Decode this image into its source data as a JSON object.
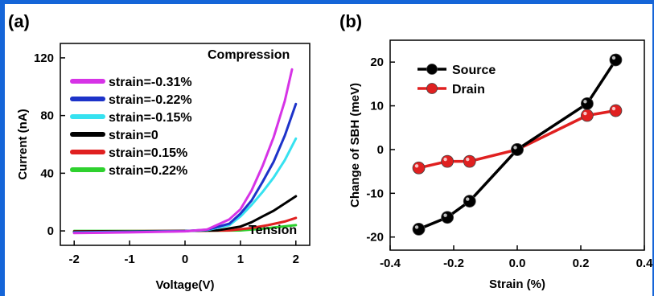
{
  "colors": {
    "frame": "#1565d8"
  },
  "chart_data": [
    {
      "panel_label": "(a)",
      "type": "line",
      "xlabel": "Voltage(V)",
      "ylabel": "Current (nA)",
      "xlim": [
        -2.25,
        2.25
      ],
      "ylim": [
        -10,
        130
      ],
      "xticks": [
        -2,
        -1,
        0,
        1,
        2
      ],
      "yticks": [
        0,
        40,
        80,
        120
      ],
      "annotations": {
        "top": "Compression",
        "bottom": "Tension"
      },
      "legend_position": "top-left",
      "series": [
        {
          "name": "strain=-0.31%",
          "color": "#d633e6",
          "points": [
            [
              -2,
              -1.5
            ],
            [
              -1,
              -1
            ],
            [
              0,
              -0.3
            ],
            [
              0.4,
              1
            ],
            [
              0.8,
              8
            ],
            [
              1.0,
              15
            ],
            [
              1.2,
              28
            ],
            [
              1.4,
              45
            ],
            [
              1.6,
              65
            ],
            [
              1.8,
              90
            ],
            [
              1.93,
              112
            ]
          ]
        },
        {
          "name": "strain=-0.22%",
          "color": "#1d33c9",
          "points": [
            [
              -2,
              -1.2
            ],
            [
              -1,
              -0.8
            ],
            [
              0,
              -0.2
            ],
            [
              0.4,
              0.8
            ],
            [
              0.8,
              5
            ],
            [
              1.0,
              12
            ],
            [
              1.2,
              21
            ],
            [
              1.4,
              34
            ],
            [
              1.6,
              48
            ],
            [
              1.8,
              66
            ],
            [
              2.0,
              88
            ]
          ]
        },
        {
          "name": "strain=-0.15%",
          "color": "#36e2f0",
          "points": [
            [
              -2,
              -1
            ],
            [
              -1,
              -0.6
            ],
            [
              0,
              -0.2
            ],
            [
              0.4,
              0.6
            ],
            [
              0.8,
              4
            ],
            [
              1.0,
              10
            ],
            [
              1.2,
              18
            ],
            [
              1.4,
              27
            ],
            [
              1.6,
              37
            ],
            [
              1.8,
              49
            ],
            [
              2.0,
              64
            ]
          ]
        },
        {
          "name": "strain=0",
          "color": "#000000",
          "points": [
            [
              -2,
              -0.5
            ],
            [
              -1,
              -0.3
            ],
            [
              0,
              0
            ],
            [
              0.6,
              0.5
            ],
            [
              1.0,
              3
            ],
            [
              1.2,
              6
            ],
            [
              1.4,
              10
            ],
            [
              1.6,
              14
            ],
            [
              1.8,
              19
            ],
            [
              2.0,
              24
            ]
          ]
        },
        {
          "name": "strain=0.15%",
          "color": "#e02020",
          "points": [
            [
              -2,
              -0.3
            ],
            [
              -1,
              -0.2
            ],
            [
              0,
              0
            ],
            [
              0.8,
              0.3
            ],
            [
              1.2,
              2
            ],
            [
              1.5,
              4
            ],
            [
              1.8,
              6.5
            ],
            [
              2.0,
              9
            ]
          ]
        },
        {
          "name": "strain=0.22%",
          "color": "#2ed12e",
          "points": [
            [
              -2,
              0
            ],
            [
              -1,
              0
            ],
            [
              0,
              0
            ],
            [
              1.0,
              0.3
            ],
            [
              1.4,
              1.5
            ],
            [
              1.7,
              2.8
            ],
            [
              2.0,
              4
            ]
          ]
        }
      ]
    },
    {
      "panel_label": "(b)",
      "type": "line",
      "xlabel": "Strain (%)",
      "ylabel": "Change of SBH (meV)",
      "xlim": [
        -0.4,
        0.4
      ],
      "ylim": [
        -23,
        25
      ],
      "xticks": [
        -0.4,
        -0.2,
        0.0,
        0.2,
        0.4
      ],
      "xtick_labels": [
        "-0.4",
        "-0.2",
        "0.0",
        "0.2",
        "0.4"
      ],
      "yticks": [
        -20,
        -10,
        0,
        10,
        20
      ],
      "legend_position": "top-left",
      "series": [
        {
          "name": "Source",
          "color": "#000000",
          "x": [
            -0.31,
            -0.22,
            -0.15,
            0,
            0.22,
            0.31
          ],
          "y": [
            -18.2,
            -15.5,
            -11.8,
            0,
            10.5,
            20.5
          ]
        },
        {
          "name": "Drain",
          "color": "#e02020",
          "x": [
            -0.31,
            -0.22,
            -0.15,
            0,
            0.22,
            0.31
          ],
          "y": [
            -4.2,
            -2.7,
            -2.7,
            0,
            7.8,
            8.9
          ]
        }
      ]
    }
  ]
}
